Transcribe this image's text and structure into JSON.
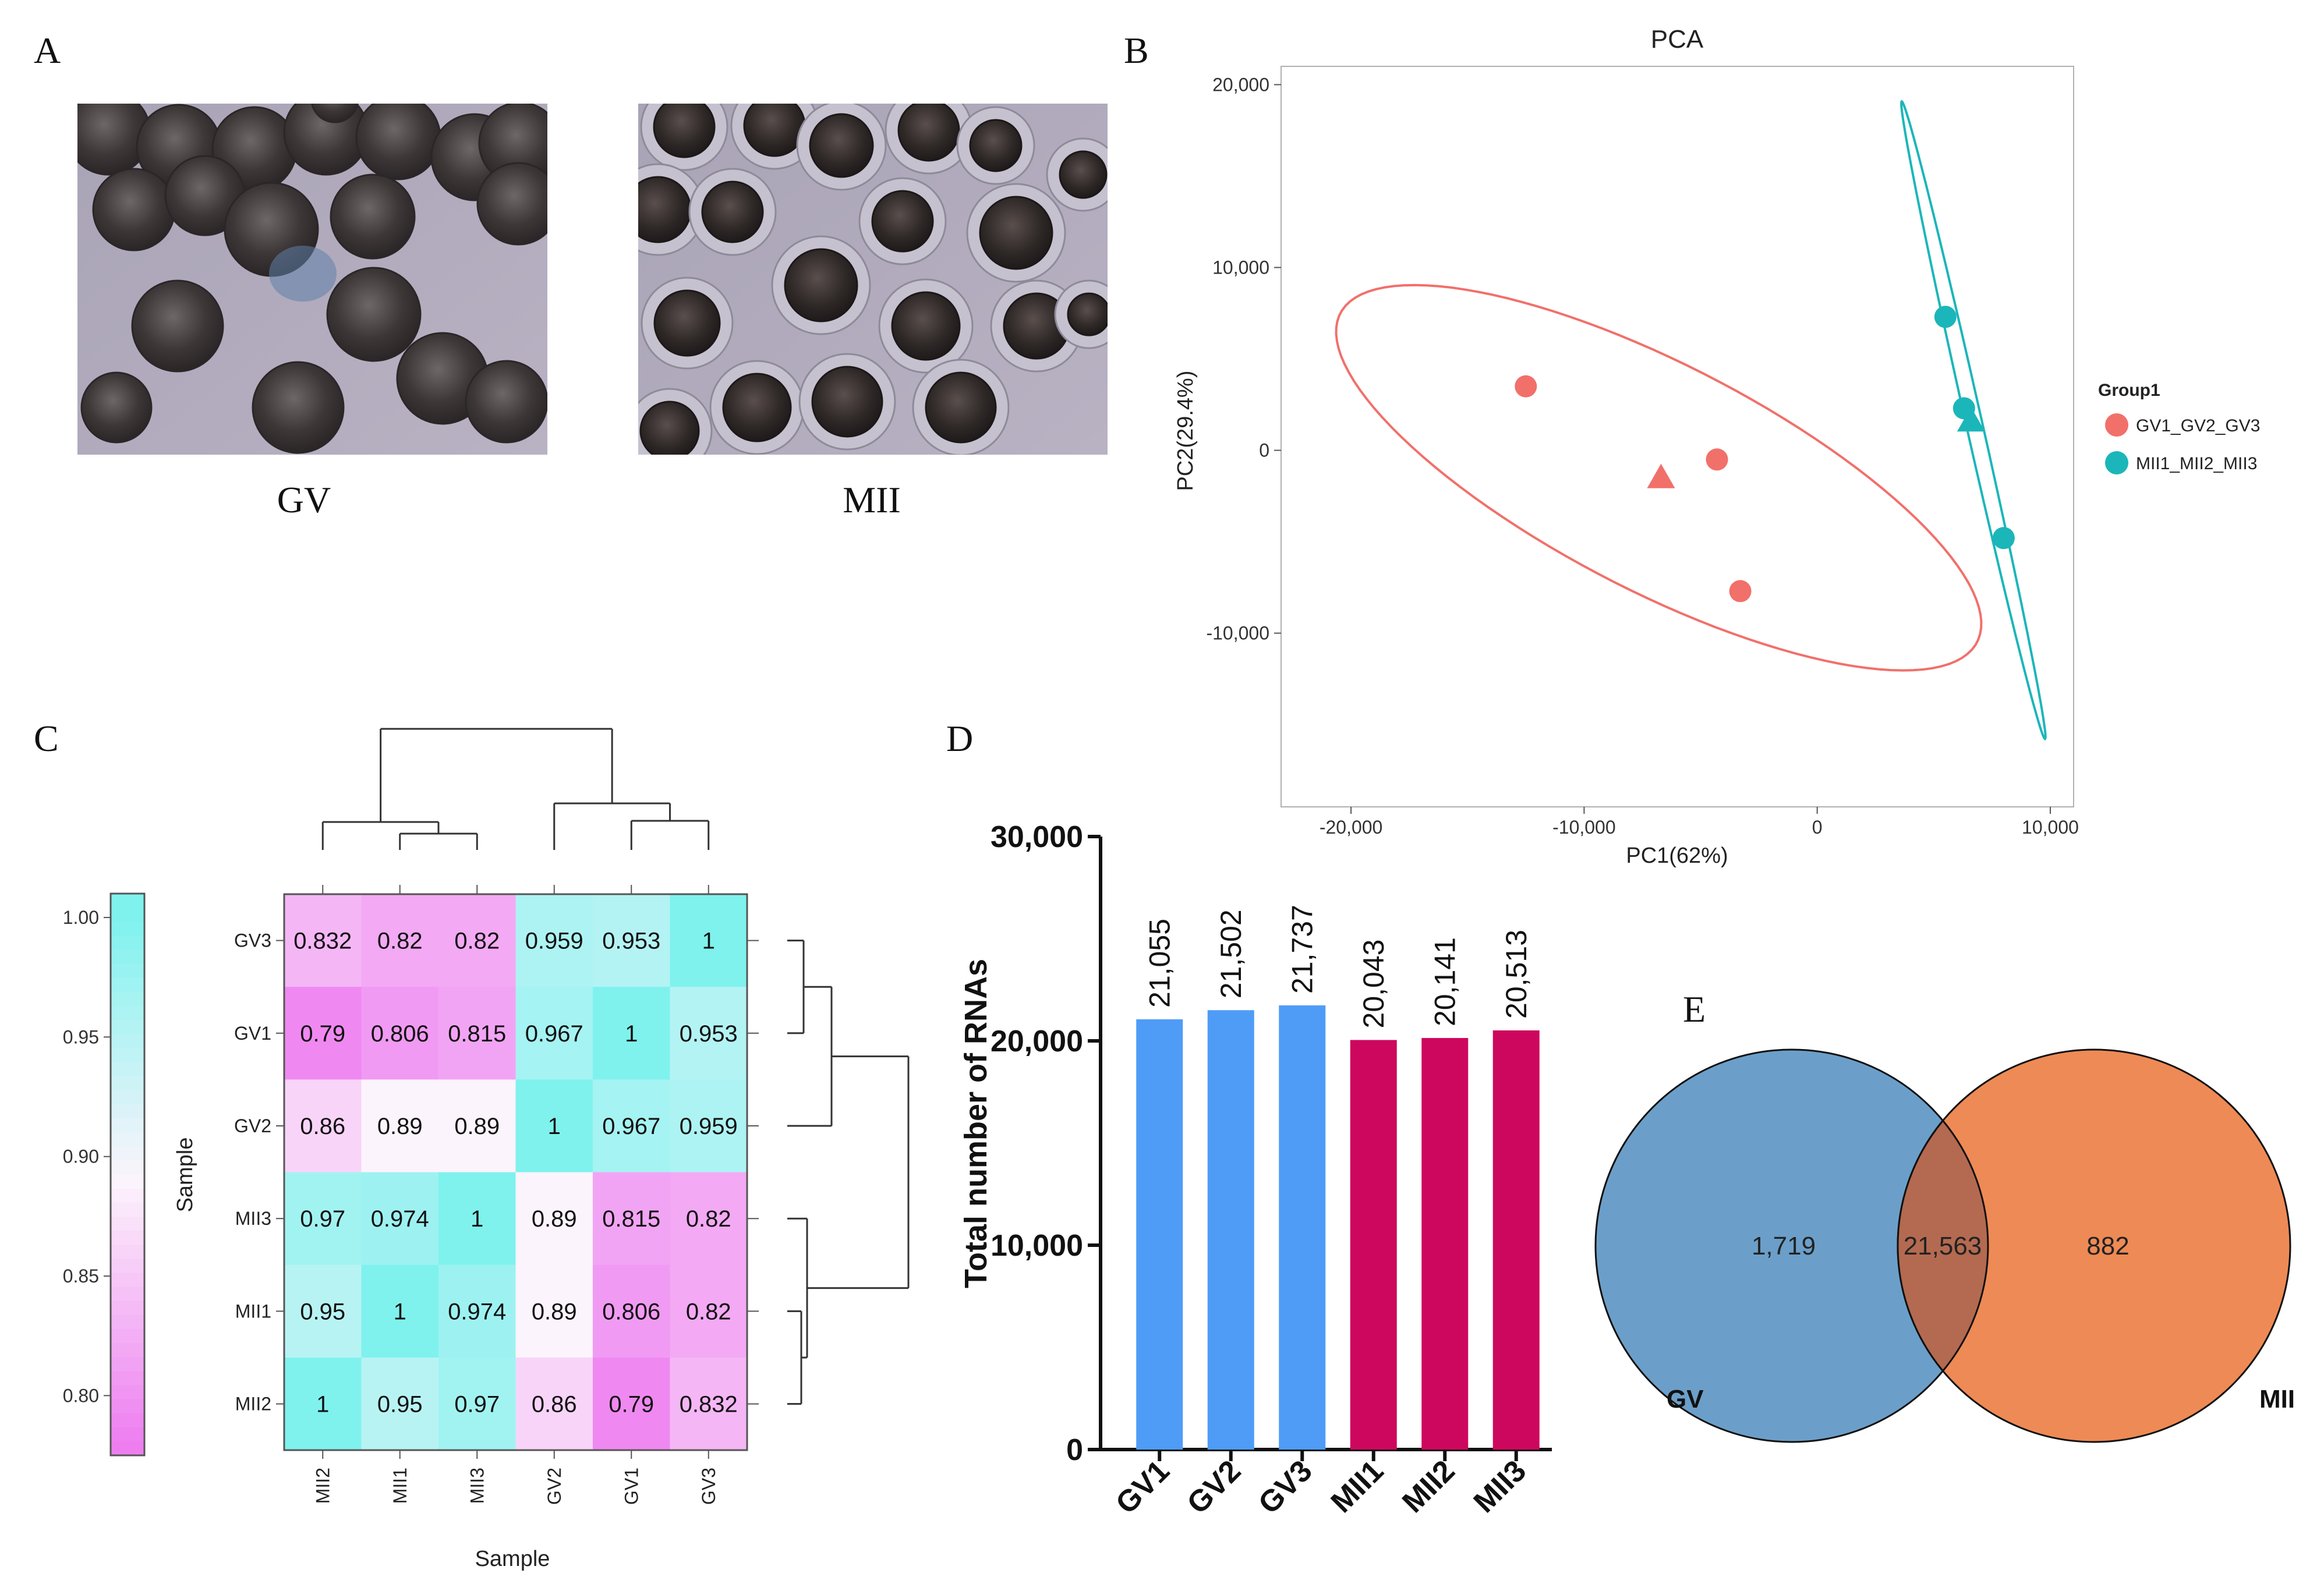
{
  "panel_labels": {
    "a": "A",
    "b": "B",
    "c": "C",
    "d": "D",
    "e": "E"
  },
  "colors": {
    "gv": "#f1706a",
    "mii": "#1bb6b9",
    "bar_gv": "#4f9cf7",
    "bar_mii": "#cd075e",
    "venn_gv": "#6b9fc9",
    "venn_mii": "#ee8a55",
    "venn_overlap": "#b46a50",
    "hm_high": "#7ff2ee",
    "hm_low": "#ee7ef0"
  },
  "photos": {
    "left_caption": "GV",
    "right_caption": "MII"
  },
  "chart_data": [
    {
      "id": "pca",
      "type": "scatter",
      "title": "PCA",
      "xlabel": "PC1(62%)",
      "ylabel": "PC2(29.4%)",
      "xlim": [
        -23000,
        11000
      ],
      "ylim": [
        -19500,
        21000
      ],
      "xticks": [
        -20000,
        -10000,
        0,
        10000
      ],
      "xtick_labels": [
        "-20,000",
        "-10,000",
        "0",
        "10,000"
      ],
      "yticks": [
        -10000,
        0,
        10000,
        20000
      ],
      "ytick_labels": [
        "-10,000",
        "0",
        "10,000",
        "20,000"
      ],
      "legend_title": "Group1",
      "series": [
        {
          "name": "GV1_GV2_GV3",
          "color": "#f1706a",
          "points": [
            [
              -12500,
              3500
            ],
            [
              -4300,
              -500
            ],
            [
              -3300,
              -7700
            ]
          ],
          "centroid": [
            -6700,
            -1500
          ],
          "ellipse": {
            "center": [
              -6800,
              -1500
            ],
            "semi_major": 16400,
            "semi_minor": 5800,
            "angle_deg": -35
          }
        },
        {
          "name": "MII1_MII2_MII3",
          "color": "#1bb6b9",
          "points": [
            [
              5500,
              7300
            ],
            [
              6300,
              2300
            ],
            [
              8000,
              -4800
            ]
          ],
          "centroid": [
            6600,
            1600
          ],
          "ellipse": {
            "center": [
              6700,
              1650
            ],
            "semi_major": 17700,
            "semi_minor": 350,
            "angle_deg": -80
          }
        }
      ]
    },
    {
      "id": "correlation-heatmap",
      "type": "heatmap",
      "xlabel": "Sample",
      "ylabel": "Sample",
      "row_labels": [
        "GV3",
        "GV1",
        "GV2",
        "MII3",
        "MII1",
        "MII2"
      ],
      "col_labels": [
        "MII2",
        "MII1",
        "MII3",
        "GV2",
        "GV1",
        "GV3"
      ],
      "cells": [
        [
          "0.832",
          "0.82",
          "0.82",
          "0.959",
          "0.953",
          "1"
        ],
        [
          "0.79",
          "0.806",
          "0.815",
          "0.967",
          "1",
          "0.953"
        ],
        [
          "0.86",
          "0.89",
          "0.89",
          "1",
          "0.967",
          "0.959"
        ],
        [
          "0.97",
          "0.974",
          "1",
          "0.89",
          "0.815",
          "0.82"
        ],
        [
          "0.95",
          "1",
          "0.974",
          "0.89",
          "0.806",
          "0.82"
        ],
        [
          "1",
          "0.95",
          "0.97",
          "0.86",
          "0.79",
          "0.832"
        ]
      ],
      "colorbar": {
        "min": 0.775,
        "max": 1.01,
        "ticks": [
          0.8,
          0.85,
          0.9,
          0.95,
          1.0
        ],
        "tick_labels": [
          "0.80",
          "0.85",
          "0.90",
          "0.95",
          "1.00"
        ]
      }
    },
    {
      "id": "rna-bar",
      "type": "bar",
      "ylabel": "Total number of RNAs",
      "ylim": [
        0,
        30000
      ],
      "yticks": [
        0,
        10000,
        20000,
        30000
      ],
      "ytick_labels": [
        "0",
        "10,000",
        "20,000",
        "30,000"
      ],
      "categories": [
        "GV1",
        "GV2",
        "GV3",
        "MII1",
        "MII2",
        "MII3"
      ],
      "values": [
        21055,
        21502,
        21737,
        20043,
        20141,
        20513
      ],
      "value_labels": [
        "21,055",
        "21,502",
        "21,737",
        "20,043",
        "20,141",
        "20,513"
      ],
      "bar_colors": [
        "#4f9cf7",
        "#4f9cf7",
        "#4f9cf7",
        "#cd075e",
        "#cd075e",
        "#cd075e"
      ]
    },
    {
      "id": "venn",
      "type": "venn",
      "sets": [
        "GV",
        "MII"
      ],
      "only_gv": "1,719",
      "both": "21,563",
      "only_mii": "882"
    }
  ]
}
